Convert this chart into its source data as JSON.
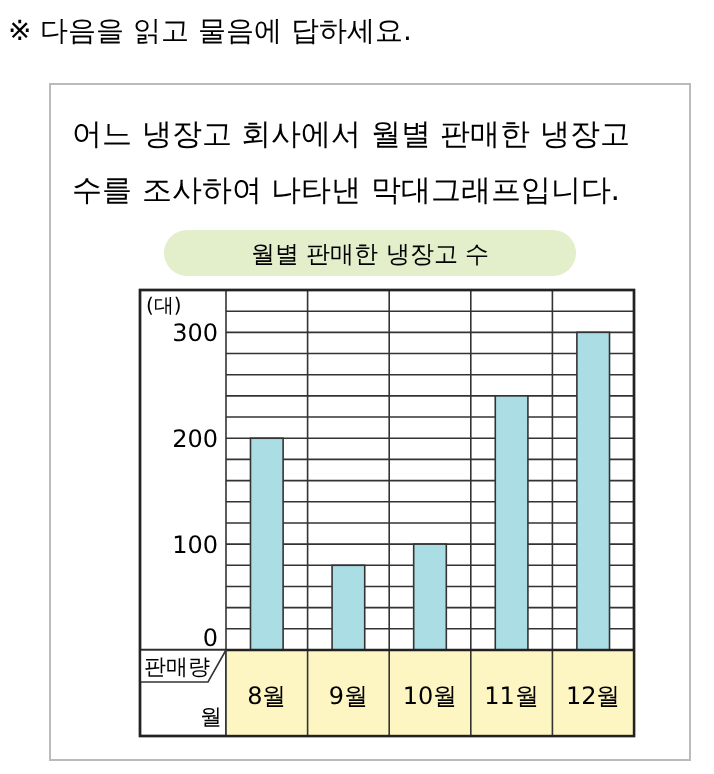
{
  "chart_data": {
    "type": "bar",
    "title": "월별 판매한 냉장고 수",
    "xlabel": "월",
    "ylabel": "판매량",
    "annotations": [
      "※ 다음을 읽고 물음에 답하세요.",
      "어느 냉장고 회사에서 월별 판매한 냉장고",
      "수를 조사하여 나타낸 막대그래프입니다.",
      "(대)"
    ],
    "categories": [
      "8월",
      "9월",
      "10월",
      "11월",
      "12월"
    ],
    "values": [
      200,
      80,
      100,
      240,
      300
    ],
    "color": "#abdde4",
    "ylim": [
      0,
      340
    ],
    "yticks": [
      0,
      {
        "value": 20,
        "label": null
      },
      {
        "value": 40,
        "label": null
      },
      {
        "value": 60,
        "label": null
      },
      {
        "value": 80,
        "label": null
      },
      100,
      {
        "value": 120,
        "label": null
      },
      {
        "value": 140,
        "label": null
      },
      {
        "value": 160,
        "label": null
      },
      {
        "value": 180,
        "label": null
      },
      200,
      {
        "value": 220,
        "label": null
      },
      {
        "value": 240,
        "label": null
      },
      {
        "value": 260,
        "label": null
      },
      {
        "value": 280,
        "label": null
      },
      300,
      {
        "value": 320,
        "label": null
      },
      {
        "value": 340,
        "label": null
      }
    ],
    "grid": true
  }
}
